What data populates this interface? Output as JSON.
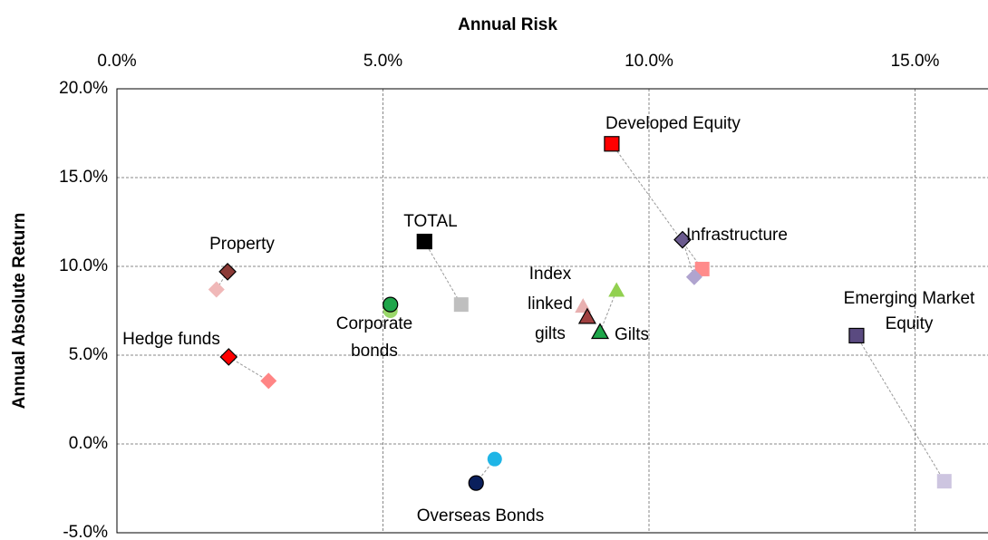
{
  "chart_data": {
    "type": "scatter",
    "xlabel": "Annual Risk",
    "ylabel": "Annual Absolute Return",
    "xlim": [
      0,
      16.5
    ],
    "ylim": [
      -5,
      20
    ],
    "xticks": [
      {
        "value": 0,
        "label": "0.0%"
      },
      {
        "value": 5,
        "label": "5.0%"
      },
      {
        "value": 10,
        "label": "10.0%"
      },
      {
        "value": 15,
        "label": "15.0%"
      }
    ],
    "yticks": [
      {
        "value": -5,
        "label": "-5.0%"
      },
      {
        "value": 0,
        "label": "0.0%"
      },
      {
        "value": 5,
        "label": "5.0%"
      },
      {
        "value": 10,
        "label": "10.0%"
      },
      {
        "value": 15,
        "label": "15.0%"
      },
      {
        "value": 20,
        "label": "20.0%"
      }
    ],
    "grid": true,
    "points": [
      {
        "label": [
          "Developed Equity"
        ],
        "marker": "square",
        "color": "#ff0000",
        "x": 9.3,
        "y": 16.9,
        "alt": {
          "color": "#ff8b8b",
          "x": 11.0,
          "y": 9.85
        }
      },
      {
        "label": [
          "Infrastructure"
        ],
        "marker": "diamond",
        "color": "#6a5a8e",
        "x": 10.63,
        "y": 11.5,
        "alt": {
          "color": "#b0a4cf",
          "x": 10.85,
          "y": 9.4
        }
      },
      {
        "label": [
          "Emerging Market",
          "Equity"
        ],
        "marker": "square",
        "color": "#5a4a80",
        "x": 13.9,
        "y": 6.1,
        "alt": {
          "color": "#cdc5e0",
          "x": 15.55,
          "y": -2.1
        }
      },
      {
        "label": [
          "TOTAL"
        ],
        "marker": "square",
        "color": "#000000",
        "x": 5.78,
        "y": 11.4,
        "alt": {
          "color": "#bfbfbf",
          "x": 6.47,
          "y": 7.85
        }
      },
      {
        "label": [
          "Property"
        ],
        "marker": "diamond",
        "color": "#8b3a36",
        "x": 2.08,
        "y": 9.7,
        "alt": {
          "color": "#f0b8b8",
          "x": 1.87,
          "y": 8.7
        }
      },
      {
        "label": [
          "Hedge funds"
        ],
        "marker": "diamond",
        "color": "#ff0000",
        "x": 2.1,
        "y": 4.9,
        "alt": {
          "color": "#ff8585",
          "x": 2.85,
          "y": 3.55
        }
      },
      {
        "label": [
          "Corporate",
          "bonds"
        ],
        "marker": "circle",
        "color": "#1fa64a",
        "x": 5.14,
        "y": 7.85,
        "alt": {
          "color": "#9ad86a",
          "x": 5.14,
          "y": 7.5
        }
      },
      {
        "label": [
          "Index",
          "linked",
          "gilts"
        ],
        "marker": "triangle",
        "color": "#a04040",
        "x": 8.84,
        "y": 7.15,
        "alt": {
          "color": "#e8b0b0",
          "x": 8.76,
          "y": 7.75
        }
      },
      {
        "label": [
          "Gilts"
        ],
        "marker": "triangle",
        "color": "#1fa64a",
        "x": 9.08,
        "y": 6.3,
        "alt": {
          "color": "#92d050",
          "x": 9.39,
          "y": 8.65
        }
      },
      {
        "label": [
          "Overseas Bonds"
        ],
        "marker": "circle",
        "color": "#0a1f5c",
        "x": 6.75,
        "y": -2.2,
        "alt": {
          "color": "#1fb5e6",
          "x": 7.1,
          "y": -0.85
        }
      }
    ]
  }
}
